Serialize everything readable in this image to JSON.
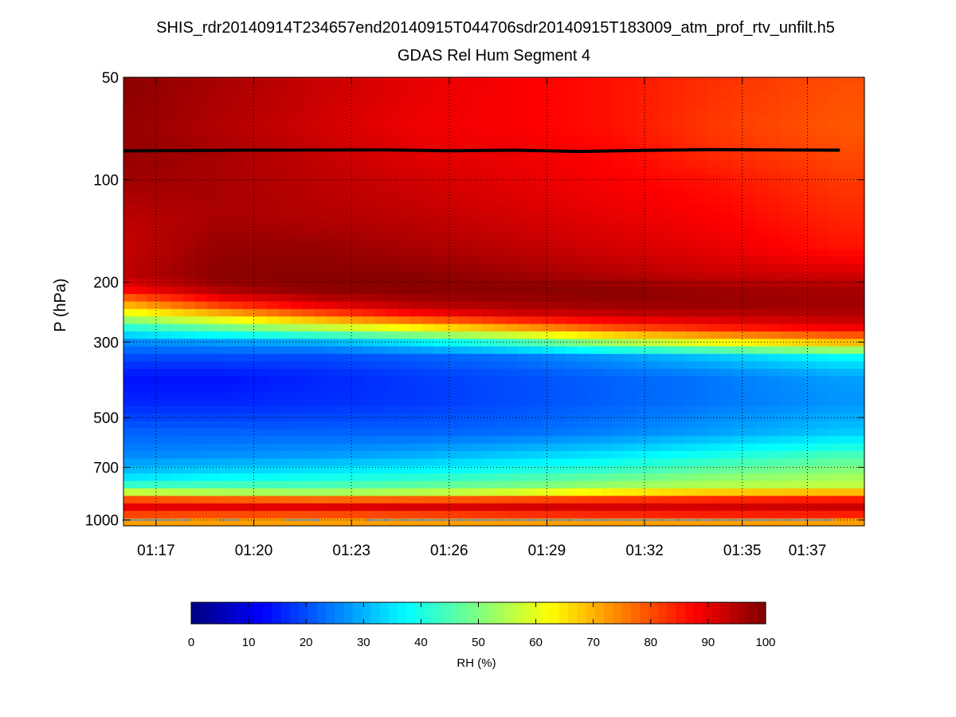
{
  "chart_data": {
    "type": "heatmap",
    "title": "SHIS_rdr20140914T234657end20140915T044706sdr20140915T183009_atm_prof_rtv_unfilt.h5",
    "subtitle": "GDAS Rel Hum Segment 4",
    "ylabel": "P (hPa)",
    "xlabel": "",
    "y_scale": "log",
    "y_reversed": true,
    "ylim": [
      50,
      1040
    ],
    "y_ticks": [
      {
        "value": 50,
        "label": "50"
      },
      {
        "value": 100,
        "label": "100"
      },
      {
        "value": 200,
        "label": "200"
      },
      {
        "value": 300,
        "label": "300"
      },
      {
        "value": 500,
        "label": "500"
      },
      {
        "value": 700,
        "label": "700"
      },
      {
        "value": 1000,
        "label": "1000"
      }
    ],
    "xlim": [
      "01:16:00",
      "01:38:45"
    ],
    "x_ticks": [
      {
        "value": "01:17",
        "label": "01:17"
      },
      {
        "value": "01:20",
        "label": "01:20"
      },
      {
        "value": "01:23",
        "label": "01:23"
      },
      {
        "value": "01:26",
        "label": "01:26"
      },
      {
        "value": "01:29",
        "label": "01:29"
      },
      {
        "value": "01:32",
        "label": "01:32"
      },
      {
        "value": "01:35",
        "label": "01:35"
      },
      {
        "value": "01:37",
        "label": "01:37"
      }
    ],
    "grid": true,
    "colormap": "jet",
    "colorbar": {
      "label": "RH (%)",
      "range": [
        0,
        100
      ],
      "ticks": [
        0,
        10,
        20,
        30,
        40,
        50,
        60,
        70,
        80,
        90,
        100
      ],
      "placement": "bottom"
    },
    "rh_profiles": {
      "pressures_hPa": [
        50,
        70,
        80,
        100,
        130,
        160,
        190,
        210,
        230,
        250,
        270,
        300,
        330,
        380,
        450,
        550,
        650,
        740,
        800,
        840,
        880,
        920,
        960,
        1000
      ],
      "times": [
        "01:16",
        "01:19",
        "01:22",
        "01:25",
        "01:28",
        "01:31",
        "01:34",
        "01:38"
      ],
      "rh_percent": [
        [
          99,
          96,
          93,
          90,
          88,
          86,
          83,
          80
        ],
        [
          98,
          95,
          92,
          89,
          88,
          86,
          82,
          79
        ],
        [
          98,
          96,
          93,
          90,
          89,
          87,
          83,
          80
        ],
        [
          97,
          96,
          94,
          92,
          90,
          88,
          86,
          82
        ],
        [
          94,
          96,
          95,
          94,
          92,
          90,
          88,
          84
        ],
        [
          93,
          98,
          98,
          96,
          94,
          92,
          90,
          86
        ],
        [
          94,
          99,
          99,
          99,
          97,
          95,
          93,
          92
        ],
        [
          88,
          96,
          99,
          99,
          99,
          99,
          97,
          96
        ],
        [
          72,
          85,
          92,
          96,
          97,
          98,
          98,
          97
        ],
        [
          58,
          68,
          78,
          86,
          91,
          93,
          94,
          95
        ],
        [
          42,
          50,
          58,
          66,
          74,
          82,
          86,
          90
        ],
        [
          26,
          28,
          30,
          36,
          44,
          54,
          62,
          70
        ],
        [
          20,
          20,
          20,
          22,
          24,
          28,
          32,
          38
        ],
        [
          14,
          14,
          16,
          18,
          20,
          22,
          24,
          28
        ],
        [
          16,
          16,
          17,
          18,
          20,
          22,
          24,
          27
        ],
        [
          22,
          22,
          22,
          22,
          23,
          25,
          28,
          32
        ],
        [
          26,
          27,
          28,
          30,
          33,
          36,
          40,
          45
        ],
        [
          33,
          36,
          38,
          40,
          43,
          46,
          50,
          53
        ],
        [
          45,
          46,
          46,
          48,
          50,
          54,
          56,
          57
        ],
        [
          62,
          58,
          56,
          58,
          62,
          68,
          72,
          74
        ],
        [
          85,
          84,
          83,
          84,
          85,
          86,
          87,
          88
        ],
        [
          90,
          91,
          91,
          92,
          92,
          92,
          92,
          93
        ],
        [
          82,
          81,
          81,
          82,
          84,
          85,
          86,
          86
        ],
        [
          72,
          72,
          72,
          72,
          72,
          72,
          72,
          72
        ]
      ]
    },
    "series": [
      {
        "type": "line",
        "color": "#000000",
        "x": [
          "01:16",
          "01:20",
          "01:24",
          "01:26",
          "01:28",
          "01:30",
          "01:32",
          "01:34",
          "01:38"
        ],
        "y": [
          82.3,
          81.9,
          81.7,
          82.2,
          81.9,
          82.6,
          82.0,
          81.6,
          81.9
        ]
      },
      {
        "type": "points",
        "color": "#6f8fb3",
        "y_level": 1000,
        "x_segments": [
          [
            "01:16",
            "01:18"
          ],
          [
            "01:19",
            "01:19:30"
          ],
          [
            "01:21",
            "01:22"
          ],
          [
            "01:23:30",
            "01:37:45"
          ]
        ]
      }
    ]
  }
}
